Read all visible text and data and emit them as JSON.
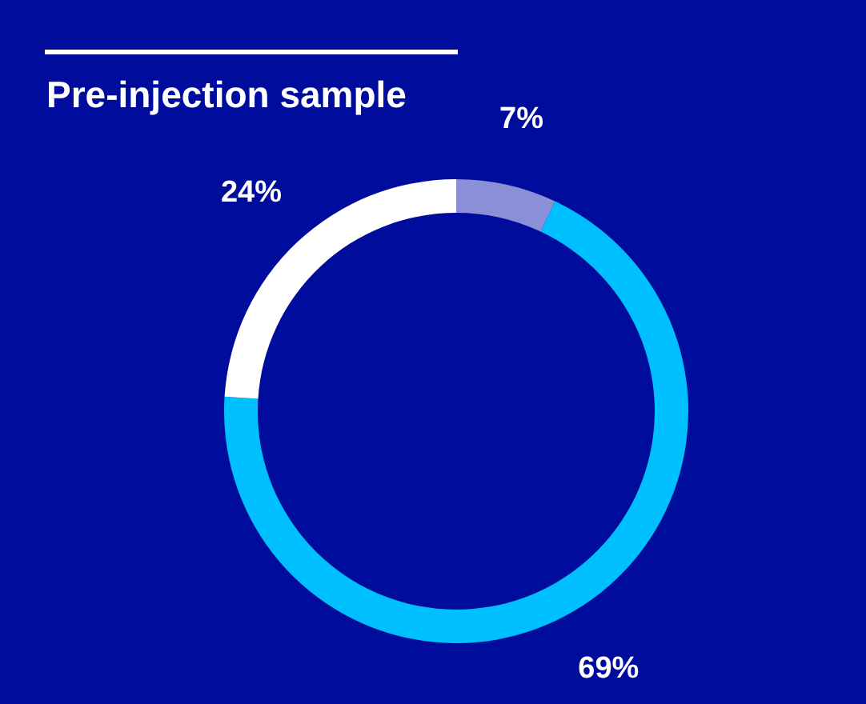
{
  "chart_data": {
    "type": "donut",
    "title": "Pre-injection sample",
    "categories": [
      null,
      null,
      null
    ],
    "values": [
      7,
      69,
      24
    ],
    "colors": [
      "#8a8fd8",
      "#00bfff",
      "#ffffff"
    ],
    "value_labels": [
      "7%",
      "69%",
      "24%"
    ],
    "legend": false
  }
}
